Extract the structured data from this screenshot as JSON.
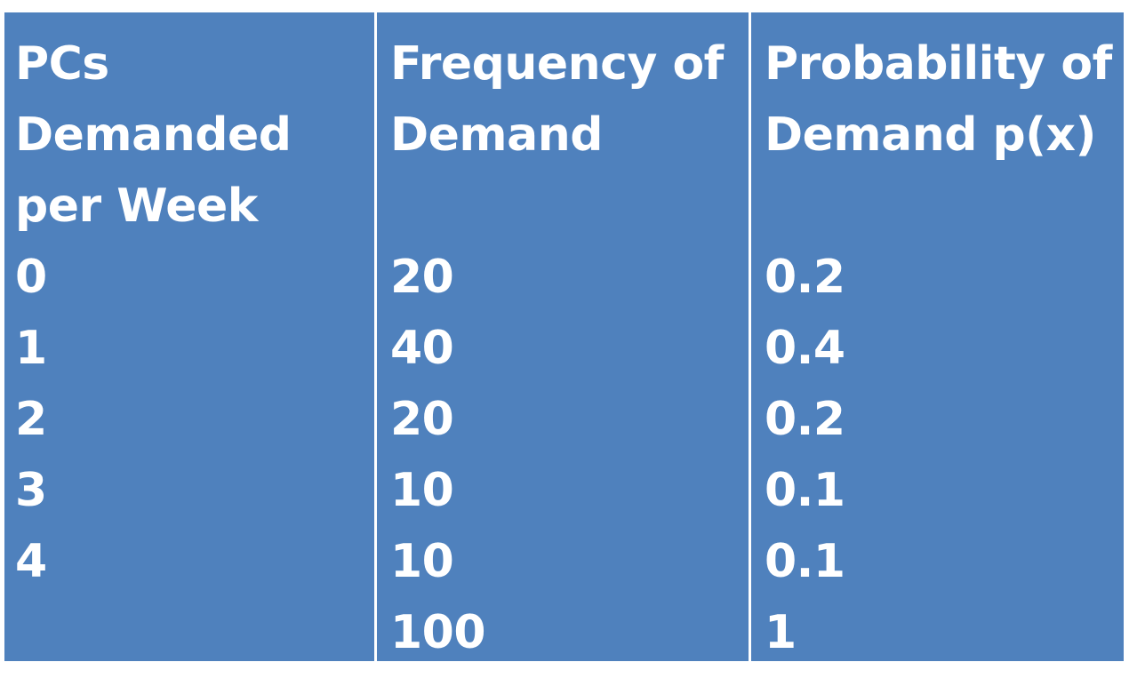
{
  "chart_data": {
    "type": "table",
    "columns": [
      {
        "header_lines": [
          "PCs",
          "Demanded",
          "per Week"
        ],
        "values": [
          "0",
          "1",
          "2",
          "3",
          "4",
          ""
        ]
      },
      {
        "header_lines": [
          "Frequency of",
          "Demand",
          ""
        ],
        "values": [
          "20",
          "40",
          "20",
          "10",
          "10",
          "100"
        ]
      },
      {
        "header_lines": [
          "Probability of",
          "Demand p(x)",
          ""
        ],
        "values": [
          "0.2",
          "0.4",
          "0.2",
          "0.1",
          "0.1",
          "1"
        ]
      }
    ],
    "rows": [
      {
        "pcs_demanded": 0,
        "frequency": 20,
        "probability": 0.2
      },
      {
        "pcs_demanded": 1,
        "frequency": 40,
        "probability": 0.4
      },
      {
        "pcs_demanded": 2,
        "frequency": 20,
        "probability": 0.2
      },
      {
        "pcs_demanded": 3,
        "frequency": 10,
        "probability": 0.1
      },
      {
        "pcs_demanded": 4,
        "frequency": 10,
        "probability": 0.1
      }
    ],
    "totals": {
      "frequency": 100,
      "probability": 1
    },
    "colors": {
      "cell_background": "#4f81bd",
      "text": "#ffffff",
      "divider": "#ffffff"
    }
  }
}
